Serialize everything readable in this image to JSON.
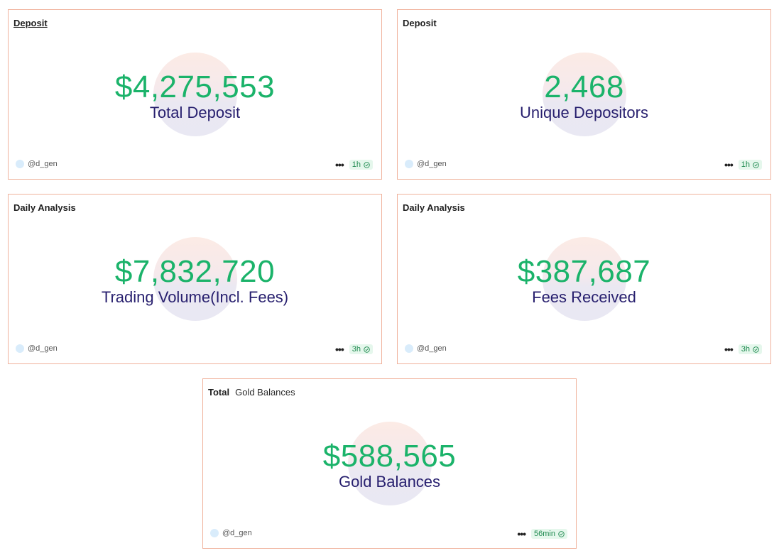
{
  "cards": [
    {
      "header": "Deposit",
      "value": "$4,275,553",
      "label": "Total Deposit",
      "author": "@d_gen",
      "refresh": "1h"
    },
    {
      "header": "Deposit",
      "value": "2,468",
      "label": "Unique Depositors",
      "author": "@d_gen",
      "refresh": "1h"
    },
    {
      "header": "Daily Analysis",
      "value": "$7,832,720",
      "label": "Trading Volume(Incl. Fees)",
      "author": "@d_gen",
      "refresh": "3h"
    },
    {
      "header": "Daily Analysis",
      "value": "$387,687",
      "label": "Fees Received",
      "author": "@d_gen",
      "refresh": "3h"
    },
    {
      "header": "Total",
      "header_sub": "Gold Balances",
      "value": "$588,565",
      "label": "Gold Balances",
      "author": "@d_gen",
      "refresh": "56min"
    }
  ],
  "icons": {
    "more": "more-horizontal-icon",
    "refresh_status": "check-circle-icon",
    "avatar": "avatar-circle"
  },
  "colors": {
    "value": "#1bb36a",
    "label": "#271f6e",
    "border": "#f0b29c",
    "badge_bg": "#e5f7ec",
    "badge_text": "#1e8a4f"
  }
}
